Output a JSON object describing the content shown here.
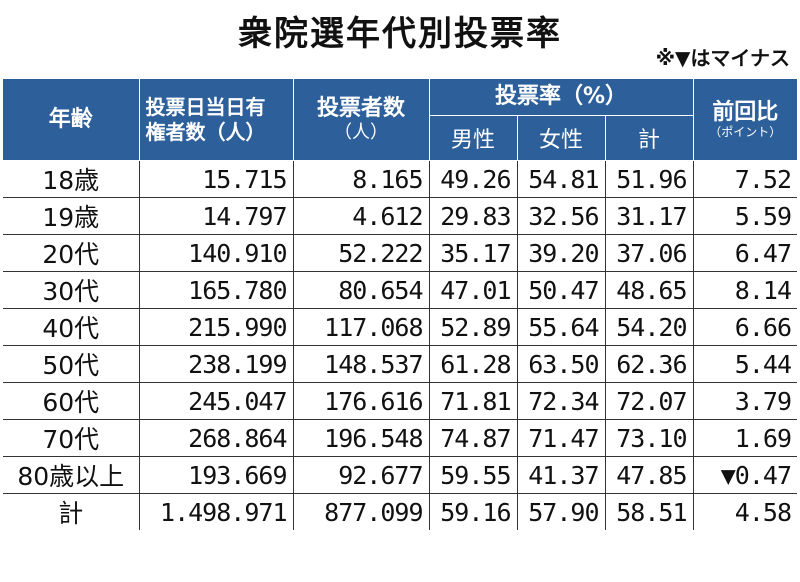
{
  "title": "衆院選年代別投票率",
  "note": "※▼はマイナス",
  "headers": {
    "age": "年齢",
    "eligible_l1": "投票日当日有",
    "eligible_l2": "権者数（人）",
    "voters": "投票者数",
    "voters_unit": "（人）",
    "rate": "投票率（%）",
    "male": "男性",
    "female": "女性",
    "total": "計",
    "diff": "前回比",
    "diff_unit": "（ポイント）"
  },
  "rows": [
    {
      "age": "18歳",
      "eligible": "15.715",
      "voters": "8.165",
      "male": "49.26",
      "female": "54.81",
      "total": "51.96",
      "diff": "7.52"
    },
    {
      "age": "19歳",
      "eligible": "14.797",
      "voters": "4.612",
      "male": "29.83",
      "female": "32.56",
      "total": "31.17",
      "diff": "5.59"
    },
    {
      "age": "20代",
      "eligible": "140.910",
      "voters": "52.222",
      "male": "35.17",
      "female": "39.20",
      "total": "37.06",
      "diff": "6.47"
    },
    {
      "age": "30代",
      "eligible": "165.780",
      "voters": "80.654",
      "male": "47.01",
      "female": "50.47",
      "total": "48.65",
      "diff": "8.14"
    },
    {
      "age": "40代",
      "eligible": "215.990",
      "voters": "117.068",
      "male": "52.89",
      "female": "55.64",
      "total": "54.20",
      "diff": "6.66"
    },
    {
      "age": "50代",
      "eligible": "238.199",
      "voters": "148.537",
      "male": "61.28",
      "female": "63.50",
      "total": "62.36",
      "diff": "5.44"
    },
    {
      "age": "60代",
      "eligible": "245.047",
      "voters": "176.616",
      "male": "71.81",
      "female": "72.34",
      "total": "72.07",
      "diff": "3.79"
    },
    {
      "age": "70代",
      "eligible": "268.864",
      "voters": "196.548",
      "male": "74.87",
      "female": "71.47",
      "total": "73.10",
      "diff": "1.69"
    },
    {
      "age": "80歳以上",
      "eligible": "193.669",
      "voters": "92.677",
      "male": "59.55",
      "female": "41.37",
      "total": "47.85",
      "diff": "▼0.47"
    },
    {
      "age": "計",
      "eligible": "1.498.971",
      "voters": "877.099",
      "male": "59.16",
      "female": "57.90",
      "total": "58.51",
      "diff": "4.58"
    }
  ]
}
